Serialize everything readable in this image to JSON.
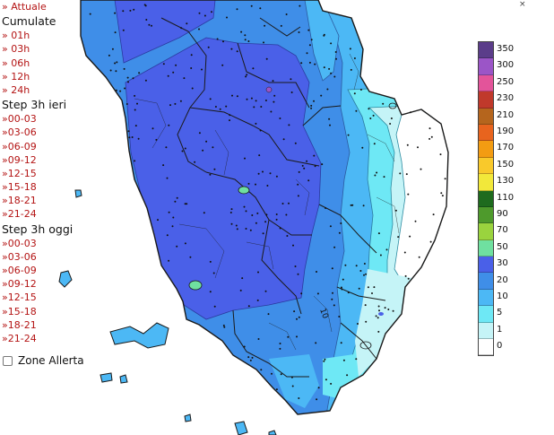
{
  "menu": {
    "current": "» Attuale",
    "cumulative": {
      "title": "Cumulate",
      "items": [
        "» 01h",
        "» 03h",
        "» 06h",
        "» 12h",
        "» 24h"
      ]
    },
    "step_yesterday": {
      "title": "Step 3h ieri",
      "items": [
        "»00-03",
        "»03-06",
        "»06-09",
        "»09-12",
        "»12-15",
        "»15-18",
        "»18-21",
        "»21-24"
      ]
    },
    "step_today": {
      "title": "Step 3h oggi",
      "items": [
        "»00-03",
        "»03-06",
        "»06-09",
        "»09-12",
        "»12-15",
        "»15-18",
        "»18-21",
        "»21-24"
      ]
    }
  },
  "zone_allerta": {
    "label": "Zone Allerta",
    "checked": false
  },
  "legend": [
    {
      "value": "350",
      "color": "#5b3d8a"
    },
    {
      "value": "300",
      "color": "#9b55c7"
    },
    {
      "value": "250",
      "color": "#e3549a"
    },
    {
      "value": "230",
      "color": "#c0392b"
    },
    {
      "value": "210",
      "color": "#b5651d"
    },
    {
      "value": "190",
      "color": "#e8641e"
    },
    {
      "value": "170",
      "color": "#f39c12"
    },
    {
      "value": "150",
      "color": "#f9c92b"
    },
    {
      "value": "130",
      "color": "#f2e83a"
    },
    {
      "value": "110",
      "color": "#1e6b1e"
    },
    {
      "value": "90",
      "color": "#4e9a2c"
    },
    {
      "value": "70",
      "color": "#9ad33e"
    },
    {
      "value": "50",
      "color": "#6fe0a0"
    },
    {
      "value": "30",
      "color": "#4a60e8"
    },
    {
      "value": "20",
      "color": "#3f8ee8"
    },
    {
      "value": "10",
      "color": "#4cb8f5"
    },
    {
      "value": "5",
      "color": "#6ee8f5"
    },
    {
      "value": "1",
      "color": "#c5f4f7"
    },
    {
      "value": "0",
      "color": "#ffffff"
    }
  ],
  "map_contour_labels": [
    "10"
  ],
  "colors": {
    "sea": "#ffffff",
    "level_30": "#4a60e8",
    "level_20": "#3f8ee8",
    "level_10": "#4cb8f5",
    "level_5": "#6ee8f5",
    "level_1": "#c5f4f7",
    "level_50": "#6fe0a0",
    "borders": "#1a1a1a"
  }
}
